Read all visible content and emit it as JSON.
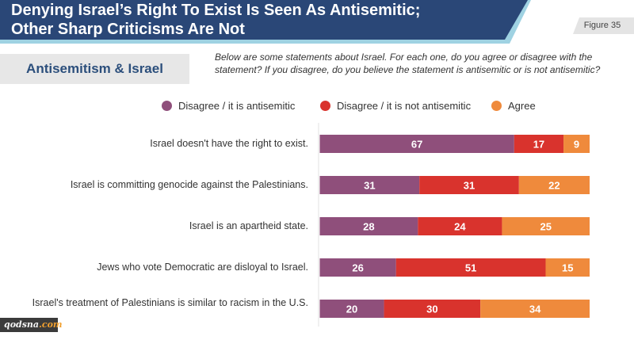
{
  "header": {
    "title_line1": "Denying Israel’s Right To Exist Is Seen As Antisemitic;",
    "title_line2": "Other Sharp Criticisms Are Not",
    "figure_label": "Figure 35"
  },
  "section": {
    "title": "Antisemitism & Israel",
    "question": "Below are some statements about Israel. For each one, do you agree or disagree with the statement? If you disagree, do you believe the statement is antisemitic or is not antisemitic?"
  },
  "colors": {
    "header_navy": "#2a4777",
    "header_stripe": "#9fd2e2",
    "antisemitic": "#8f4f7b",
    "not_antisemitic": "#d9332d",
    "agree": "#ef8a3c"
  },
  "watermark": {
    "part1": "qodsna",
    "part2": ".com"
  },
  "chart_data": {
    "type": "bar",
    "orientation": "horizontal",
    "stacked": true,
    "normalized": true,
    "title": "Antisemitism & Israel",
    "xlabel": "",
    "ylabel": "",
    "legend_position": "top",
    "grid": false,
    "categories": [
      "Israel doesn't have the right to exist.",
      "Israel is committing genocide against the Palestinians.",
      "Israel is an apartheid state.",
      "Jews who vote Democratic are disloyal to Israel.",
      "Israel's treatment of Palestinians is similar to racism in the U.S."
    ],
    "series": [
      {
        "name": "Disagree / it is antisemitic",
        "color": "#8f4f7b",
        "values": [
          67,
          31,
          28,
          26,
          20
        ]
      },
      {
        "name": "Disagree / it is not antisemitic",
        "color": "#d9332d",
        "values": [
          17,
          31,
          24,
          51,
          30
        ]
      },
      {
        "name": "Agree",
        "color": "#ef8a3c",
        "values": [
          9,
          22,
          25,
          15,
          34
        ]
      }
    ]
  }
}
